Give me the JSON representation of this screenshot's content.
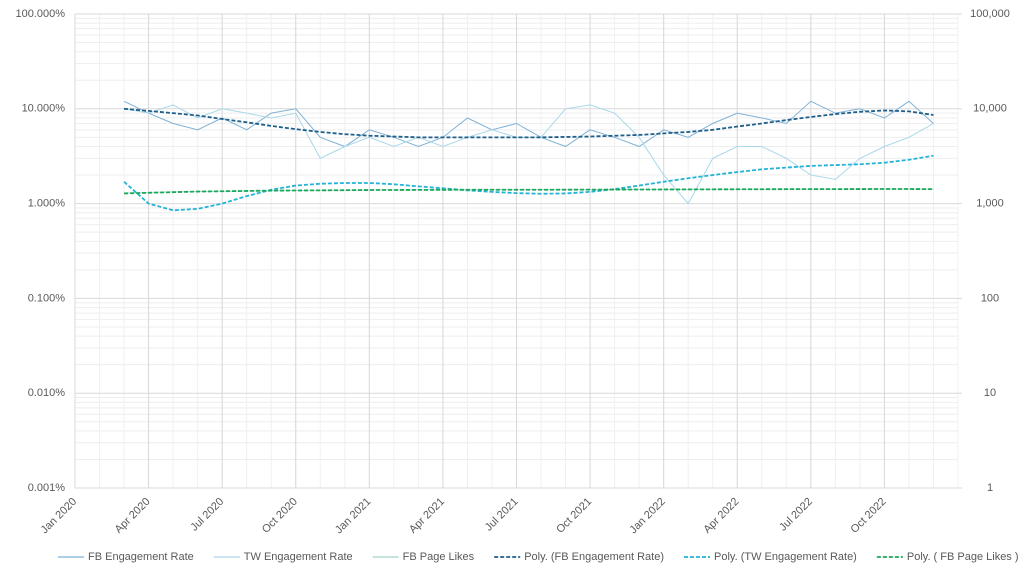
{
  "chart_data": {
    "type": "line",
    "xlim": [
      "2020-01",
      "2023-01"
    ],
    "xticks": [
      {
        "value": "2020-01",
        "label": "Jan 2020"
      },
      {
        "value": "2020-04",
        "label": "Apr 2020"
      },
      {
        "value": "2020-07",
        "label": "Jul 2020"
      },
      {
        "value": "2020-10",
        "label": "Oct 2020"
      },
      {
        "value": "2021-01",
        "label": "Jan 2021"
      },
      {
        "value": "2021-04",
        "label": "Apr 2021"
      },
      {
        "value": "2021-07",
        "label": "Jul 2021"
      },
      {
        "value": "2021-10",
        "label": "Oct 2021"
      },
      {
        "value": "2022-01",
        "label": "Jan 2022"
      },
      {
        "value": "2022-04",
        "label": "Apr 2022"
      },
      {
        "value": "2022-07",
        "label": "Jul 2022"
      },
      {
        "value": "2022-10",
        "label": "Oct 2022"
      }
    ],
    "ylim": [
      0.001,
      100
    ],
    "yticks": [
      {
        "value": 100,
        "label": "100.000%"
      },
      {
        "value": 10,
        "label": "10.000%"
      },
      {
        "value": 1,
        "label": "1.000%"
      },
      {
        "value": 0.1,
        "label": "0.100%"
      },
      {
        "value": 0.01,
        "label": "0.010%"
      },
      {
        "value": 0.001,
        "label": "0.001%"
      }
    ],
    "y2lim": [
      1,
      100000
    ],
    "y2ticks": [
      {
        "value": 100000,
        "label": "100,000"
      },
      {
        "value": 10000,
        "label": "10,000"
      },
      {
        "value": 1000,
        "label": "1,000"
      },
      100,
      10,
      1
    ],
    "log_scale": true,
    "grid": true,
    "legend": "bottom",
    "x": [
      "2020-03",
      "2020-04",
      "2020-05",
      "2020-06",
      "2020-07",
      "2020-08",
      "2020-09",
      "2020-10",
      "2020-11",
      "2020-12",
      "2021-01",
      "2021-02",
      "2021-03",
      "2021-04",
      "2021-05",
      "2021-06",
      "2021-07",
      "2021-08",
      "2021-09",
      "2021-10",
      "2021-11",
      "2021-12",
      "2022-01",
      "2022-02",
      "2022-03",
      "2022-04",
      "2022-05",
      "2022-06",
      "2022-07",
      "2022-08",
      "2022-09",
      "2022-10",
      "2022-11",
      "2022-12"
    ],
    "series": [
      {
        "name": "FB Engagement Rate",
        "color": "#7fb2d6",
        "dashed": false,
        "values": [
          12,
          9,
          7,
          6,
          8,
          6,
          9,
          10,
          5,
          4,
          6,
          5,
          4,
          5,
          8,
          6,
          7,
          5,
          4,
          6,
          5,
          4,
          6,
          5,
          7,
          9,
          8,
          7,
          12,
          9,
          10,
          8,
          12,
          7
        ]
      },
      {
        "name": "TW Engagement Rate",
        "color": "#a9d8ea",
        "dashed": false,
        "values": [
          10,
          9,
          11,
          8,
          10,
          9,
          8,
          9,
          3,
          4,
          5,
          4,
          5,
          4,
          5,
          6,
          5,
          5,
          10,
          11,
          9,
          5,
          2,
          1,
          3,
          4,
          4,
          3,
          2,
          1.8,
          3,
          4,
          5,
          7
        ]
      },
      {
        "name": "FB Page Likes",
        "color": "#a3d4cc",
        "dashed": false,
        "axis": "y2",
        "values": [
          1290,
          1310,
          1330,
          1340,
          1350,
          1360,
          1365,
          1375,
          1380,
          1385,
          1390,
          1390,
          1395,
          1395,
          1400,
          1400,
          1400,
          1405,
          1400,
          1405,
          1405,
          1410,
          1410,
          1410,
          1415,
          1415,
          1420,
          1420,
          1420,
          1420,
          1425,
          1425,
          1425,
          1420
        ]
      },
      {
        "name": "Poly. (FB Engagement Rate)",
        "color": "#1f5f8b",
        "dashed": true,
        "values": [
          10,
          9.5,
          9,
          8.5,
          7.8,
          7.2,
          6.6,
          6.1,
          5.7,
          5.4,
          5.2,
          5.1,
          5,
          5,
          5,
          5,
          5,
          5,
          5.05,
          5.1,
          5.2,
          5.3,
          5.5,
          5.7,
          6,
          6.5,
          7,
          7.6,
          8.2,
          8.8,
          9.3,
          9.6,
          9.4,
          8.6
        ]
      },
      {
        "name": "Poly. (TW Engagement Rate)",
        "color": "#22b3d6",
        "dashed": true,
        "values": [
          1.7,
          1,
          0.85,
          0.88,
          1,
          1.2,
          1.4,
          1.55,
          1.62,
          1.65,
          1.65,
          1.6,
          1.52,
          1.45,
          1.38,
          1.33,
          1.29,
          1.27,
          1.28,
          1.33,
          1.42,
          1.55,
          1.7,
          1.85,
          2,
          2.15,
          2.3,
          2.4,
          2.5,
          2.55,
          2.6,
          2.7,
          2.9,
          3.2
        ]
      },
      {
        "name": "Poly. ( FB Page Likes )",
        "color": "#1aa85a",
        "dashed": true,
        "axis": "y2",
        "values": [
          1280,
          1300,
          1320,
          1340,
          1350,
          1360,
          1370,
          1375,
          1380,
          1385,
          1390,
          1392,
          1395,
          1398,
          1400,
          1400,
          1400,
          1400,
          1402,
          1404,
          1406,
          1408,
          1410,
          1412,
          1414,
          1416,
          1418,
          1420,
          1420,
          1422,
          1424,
          1425,
          1425,
          1420
        ]
      }
    ]
  }
}
